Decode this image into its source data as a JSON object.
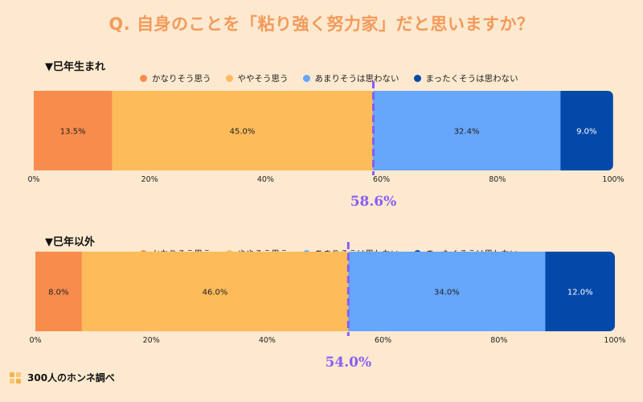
{
  "title": "Q. 自身のことを「粘り強く努力家」だと思いますか？",
  "footer": "300人のホンネ調べ",
  "colors": {
    "strongly_agree": "#f88c4c",
    "agree": "#fdbb5a",
    "disagree": "#66a6fb",
    "strongly_disagree": "#0349aa",
    "marker": "#8b5cf6"
  },
  "chart_data": [
    {
      "type": "bar",
      "orientation": "horizontal-stacked",
      "title": "▼巳年生まれ",
      "legend": [
        "かなりそう思う",
        "ややそう思う",
        "あまりそうは思わない",
        "まったくそうは思わない"
      ],
      "values": [
        13.5,
        45.0,
        32.4,
        9.0
      ],
      "value_labels": [
        "13.5%",
        "45.0%",
        "32.4%",
        "9.0%"
      ],
      "ticks": [
        "0%",
        "20%",
        "40%",
        "60%",
        "80%",
        "100%"
      ],
      "xlim": [
        0,
        100
      ],
      "marker": {
        "value": 58.6,
        "label": "58.6%"
      }
    },
    {
      "type": "bar",
      "orientation": "horizontal-stacked",
      "title": "▼巳年以外",
      "legend": [
        "かなりそう思う",
        "ややそう思う",
        "あまりそうは思わない",
        "まったくそうは思わない"
      ],
      "values": [
        8.0,
        46.0,
        34.0,
        12.0
      ],
      "value_labels": [
        "8.0%",
        "46.0%",
        "34.0%",
        "12.0%"
      ],
      "ticks": [
        "0%",
        "20%",
        "40%",
        "60%",
        "80%",
        "100%"
      ],
      "xlim": [
        0,
        100
      ],
      "marker": {
        "value": 54.0,
        "label": "54.0%"
      }
    }
  ]
}
